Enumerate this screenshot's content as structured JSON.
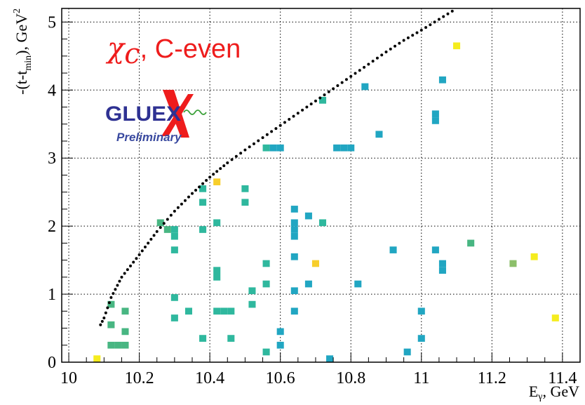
{
  "chart_data": {
    "type": "heatmap",
    "xlabel_main": "E",
    "xlabel_sub": "γ",
    "xlabel_unit": ", GeV",
    "ylabel_main": "-(t-t",
    "ylabel_sub": "min",
    "ylabel_unit": "), GeV",
    "ylabel_sup": "2",
    "xlim": [
      9.98,
      11.45
    ],
    "ylim": [
      0,
      5.2
    ],
    "x_ticks": [
      {
        "value": 10,
        "label": "10"
      },
      {
        "value": 10.2,
        "label": "10.2"
      },
      {
        "value": 10.4,
        "label": "10.4"
      },
      {
        "value": 10.6,
        "label": "10.6"
      },
      {
        "value": 10.8,
        "label": "10.8"
      },
      {
        "value": 11,
        "label": "11"
      },
      {
        "value": 11.2,
        "label": "11.2"
      },
      {
        "value": 11.4,
        "label": "11.4"
      }
    ],
    "y_ticks": [
      {
        "value": 0,
        "label": "0"
      },
      {
        "value": 1,
        "label": "1"
      },
      {
        "value": 2,
        "label": "2"
      },
      {
        "value": 3,
        "label": "3"
      },
      {
        "value": 4,
        "label": "4"
      },
      {
        "value": 5,
        "label": "5"
      }
    ],
    "grid": true,
    "bin_width": 0.02,
    "bin_height": 0.1,
    "colors": {
      "teal": "#21a6c2",
      "mint": "#2fb89e",
      "green": "#48b682",
      "olive": "#8cbf6a",
      "gold": "#f7ce2b",
      "yellow": "#f5ec1e",
      "kinematic_dots": "#000000",
      "legend_text": "#ee1c1c"
    },
    "bins": [
      {
        "x": 10.08,
        "y": 0.05,
        "c": "yellow"
      },
      {
        "x": 10.12,
        "y": 0.25,
        "c": "green"
      },
      {
        "x": 10.14,
        "y": 0.25,
        "c": "green"
      },
      {
        "x": 10.16,
        "y": 0.25,
        "c": "green"
      },
      {
        "x": 10.12,
        "y": 0.55,
        "c": "green"
      },
      {
        "x": 10.16,
        "y": 0.45,
        "c": "green"
      },
      {
        "x": 10.16,
        "y": 0.75,
        "c": "green"
      },
      {
        "x": 10.12,
        "y": 0.85,
        "c": "green"
      },
      {
        "x": 10.26,
        "y": 2.05,
        "c": "green"
      },
      {
        "x": 10.28,
        "y": 1.95,
        "c": "green"
      },
      {
        "x": 10.3,
        "y": 1.95,
        "c": "mint"
      },
      {
        "x": 10.3,
        "y": 1.85,
        "c": "mint"
      },
      {
        "x": 10.3,
        "y": 1.65,
        "c": "mint"
      },
      {
        "x": 10.3,
        "y": 0.95,
        "c": "mint"
      },
      {
        "x": 10.3,
        "y": 0.65,
        "c": "mint"
      },
      {
        "x": 10.34,
        "y": 0.75,
        "c": "mint"
      },
      {
        "x": 10.38,
        "y": 2.55,
        "c": "mint"
      },
      {
        "x": 10.38,
        "y": 2.35,
        "c": "mint"
      },
      {
        "x": 10.38,
        "y": 1.95,
        "c": "mint"
      },
      {
        "x": 10.42,
        "y": 2.65,
        "c": "gold"
      },
      {
        "x": 10.42,
        "y": 2.05,
        "c": "mint"
      },
      {
        "x": 10.42,
        "y": 1.35,
        "c": "mint"
      },
      {
        "x": 10.42,
        "y": 1.25,
        "c": "mint"
      },
      {
        "x": 10.42,
        "y": 0.75,
        "c": "mint"
      },
      {
        "x": 10.44,
        "y": 0.75,
        "c": "mint"
      },
      {
        "x": 10.46,
        "y": 0.75,
        "c": "mint"
      },
      {
        "x": 10.38,
        "y": 0.35,
        "c": "mint"
      },
      {
        "x": 10.46,
        "y": 0.35,
        "c": "mint"
      },
      {
        "x": 10.5,
        "y": 2.55,
        "c": "mint"
      },
      {
        "x": 10.5,
        "y": 2.35,
        "c": "mint"
      },
      {
        "x": 10.52,
        "y": 1.05,
        "c": "mint"
      },
      {
        "x": 10.52,
        "y": 0.85,
        "c": "mint"
      },
      {
        "x": 10.56,
        "y": 3.15,
        "c": "mint"
      },
      {
        "x": 10.58,
        "y": 3.15,
        "c": "teal"
      },
      {
        "x": 10.6,
        "y": 3.15,
        "c": "teal"
      },
      {
        "x": 10.56,
        "y": 1.45,
        "c": "mint"
      },
      {
        "x": 10.56,
        "y": 1.15,
        "c": "mint"
      },
      {
        "x": 10.56,
        "y": 0.15,
        "c": "mint"
      },
      {
        "x": 10.6,
        "y": 0.45,
        "c": "teal"
      },
      {
        "x": 10.6,
        "y": 0.25,
        "c": "teal"
      },
      {
        "x": 10.64,
        "y": 2.25,
        "c": "teal"
      },
      {
        "x": 10.64,
        "y": 2.05,
        "c": "teal"
      },
      {
        "x": 10.64,
        "y": 1.95,
        "c": "teal"
      },
      {
        "x": 10.64,
        "y": 1.85,
        "c": "teal"
      },
      {
        "x": 10.64,
        "y": 1.55,
        "c": "teal"
      },
      {
        "x": 10.64,
        "y": 1.05,
        "c": "teal"
      },
      {
        "x": 10.64,
        "y": 0.75,
        "c": "teal"
      },
      {
        "x": 10.68,
        "y": 2.15,
        "c": "teal"
      },
      {
        "x": 10.7,
        "y": 1.45,
        "c": "gold"
      },
      {
        "x": 10.68,
        "y": 1.15,
        "c": "teal"
      },
      {
        "x": 10.72,
        "y": 2.05,
        "c": "mint"
      },
      {
        "x": 10.72,
        "y": 3.85,
        "c": "mint"
      },
      {
        "x": 10.76,
        "y": 3.15,
        "c": "teal"
      },
      {
        "x": 10.78,
        "y": 3.15,
        "c": "teal"
      },
      {
        "x": 10.8,
        "y": 3.15,
        "c": "teal"
      },
      {
        "x": 10.74,
        "y": 0.05,
        "c": "teal"
      },
      {
        "x": 10.82,
        "y": 1.15,
        "c": "teal"
      },
      {
        "x": 10.84,
        "y": 4.05,
        "c": "teal"
      },
      {
        "x": 10.88,
        "y": 3.35,
        "c": "teal"
      },
      {
        "x": 10.92,
        "y": 1.65,
        "c": "teal"
      },
      {
        "x": 10.96,
        "y": 0.15,
        "c": "teal"
      },
      {
        "x": 11.0,
        "y": 0.75,
        "c": "teal"
      },
      {
        "x": 11.0,
        "y": 0.35,
        "c": "teal"
      },
      {
        "x": 11.04,
        "y": 1.65,
        "c": "teal"
      },
      {
        "x": 11.04,
        "y": 3.65,
        "c": "teal"
      },
      {
        "x": 11.04,
        "y": 3.55,
        "c": "teal"
      },
      {
        "x": 11.06,
        "y": 4.15,
        "c": "teal"
      },
      {
        "x": 11.06,
        "y": 1.45,
        "c": "teal"
      },
      {
        "x": 11.06,
        "y": 1.35,
        "c": "teal"
      },
      {
        "x": 11.1,
        "y": 4.65,
        "c": "yellow"
      },
      {
        "x": 11.14,
        "y": 1.75,
        "c": "green"
      },
      {
        "x": 11.26,
        "y": 1.45,
        "c": "olive"
      },
      {
        "x": 11.32,
        "y": 1.55,
        "c": "yellow"
      },
      {
        "x": 11.38,
        "y": 0.65,
        "c": "yellow"
      }
    ],
    "kinematic_curve": {
      "e_min": 10.09,
      "t_at_min": 0.55,
      "points": [
        {
          "x": 10.09,
          "y": 0.55
        },
        {
          "x": 10.1,
          "y": 0.65
        },
        {
          "x": 10.12,
          "y": 0.95
        },
        {
          "x": 10.15,
          "y": 1.25
        },
        {
          "x": 10.2,
          "y": 1.58
        },
        {
          "x": 10.25,
          "y": 1.92
        },
        {
          "x": 10.3,
          "y": 2.22
        },
        {
          "x": 10.35,
          "y": 2.48
        },
        {
          "x": 10.4,
          "y": 2.72
        },
        {
          "x": 10.45,
          "y": 2.93
        },
        {
          "x": 10.5,
          "y": 3.12
        },
        {
          "x": 10.55,
          "y": 3.3
        },
        {
          "x": 10.6,
          "y": 3.48
        },
        {
          "x": 10.65,
          "y": 3.66
        },
        {
          "x": 10.7,
          "y": 3.84
        },
        {
          "x": 10.75,
          "y": 4.02
        },
        {
          "x": 10.8,
          "y": 4.2
        },
        {
          "x": 10.85,
          "y": 4.38
        },
        {
          "x": 10.9,
          "y": 4.56
        },
        {
          "x": 10.95,
          "y": 4.73
        },
        {
          "x": 11.0,
          "y": 4.88
        },
        {
          "x": 11.05,
          "y": 5.04
        },
        {
          "x": 11.1,
          "y": 5.2
        }
      ]
    },
    "legend": {
      "symbol": "χ",
      "symbol_sub": "c",
      "text": ", C-even",
      "placement": "top-left"
    },
    "logo": {
      "name": "GLUEX",
      "caption": "Preliminary"
    }
  }
}
